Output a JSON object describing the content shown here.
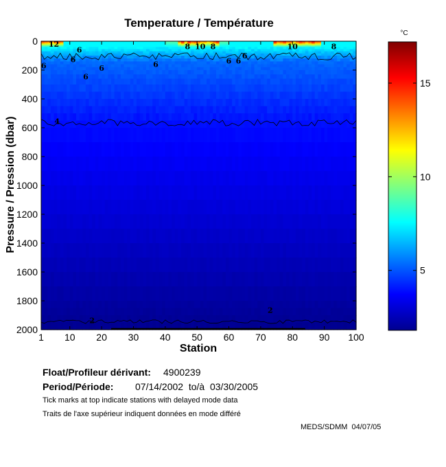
{
  "chart_data": {
    "type": "heatmap",
    "title": "Temperature / Température",
    "xlabel": "Station",
    "ylabel": "Pressure / Pression (dbar)",
    "xlim": [
      1,
      100
    ],
    "ylim": [
      2000,
      0
    ],
    "y_inverted": true,
    "x_ticks": [
      "1",
      "10",
      "20",
      "30",
      "40",
      "50",
      "60",
      "70",
      "80",
      "90",
      "100"
    ],
    "x_tick_values": [
      1,
      10,
      20,
      30,
      40,
      50,
      60,
      70,
      80,
      90,
      100
    ],
    "y_ticks": [
      "0",
      "200",
      "400",
      "600",
      "800",
      "1000",
      "1200",
      "1400",
      "1600",
      "1800",
      "2000"
    ],
    "y_tick_values": [
      0,
      200,
      400,
      600,
      800,
      1000,
      1200,
      1400,
      1600,
      1800,
      2000
    ],
    "colorbar": {
      "unit": "°C",
      "range": [
        1.8,
        17.2
      ],
      "ticks": [
        "5",
        "10",
        "15"
      ],
      "tick_values": [
        5,
        10,
        15
      ],
      "colormap": "jet"
    },
    "contour_labels": [
      {
        "text": "12",
        "x": 5,
        "y": 20
      },
      {
        "text": "6",
        "x": 13,
        "y": 60
      },
      {
        "text": "6",
        "x": 1.8,
        "y": 170
      },
      {
        "text": "6",
        "x": 11,
        "y": 125
      },
      {
        "text": "6",
        "x": 20,
        "y": 185
      },
      {
        "text": "6",
        "x": 15,
        "y": 245
      },
      {
        "text": "6",
        "x": 37,
        "y": 160
      },
      {
        "text": "8",
        "x": 47,
        "y": 35
      },
      {
        "text": "10",
        "x": 51,
        "y": 35
      },
      {
        "text": "8",
        "x": 55,
        "y": 35
      },
      {
        "text": "6",
        "x": 60,
        "y": 135
      },
      {
        "text": "6",
        "x": 63,
        "y": 135
      },
      {
        "text": "6",
        "x": 65,
        "y": 100
      },
      {
        "text": "4",
        "x": 6,
        "y": 555
      },
      {
        "text": "10",
        "x": 80,
        "y": 35
      },
      {
        "text": "8",
        "x": 93,
        "y": 35
      },
      {
        "text": "2",
        "x": 17,
        "y": 1935
      },
      {
        "text": "2",
        "x": 73,
        "y": 1865
      }
    ],
    "contour_levels": [
      2,
      4,
      6,
      8,
      10,
      12
    ],
    "delayed_mode_stations": {
      "start": 23,
      "end": 84
    }
  },
  "info": {
    "float_label": "Float/Profileur dérivant:",
    "float_value": "4900239",
    "period_label": "Period/Période:",
    "period_value": "07/14/2002  to/à  03/30/2005",
    "note_en": "Tick marks at top indicate stations with delayed mode data",
    "note_fr": "Traits de l'axe supérieur indiquent données en mode différé",
    "credit": "MEDS/SDMM  04/07/05"
  }
}
